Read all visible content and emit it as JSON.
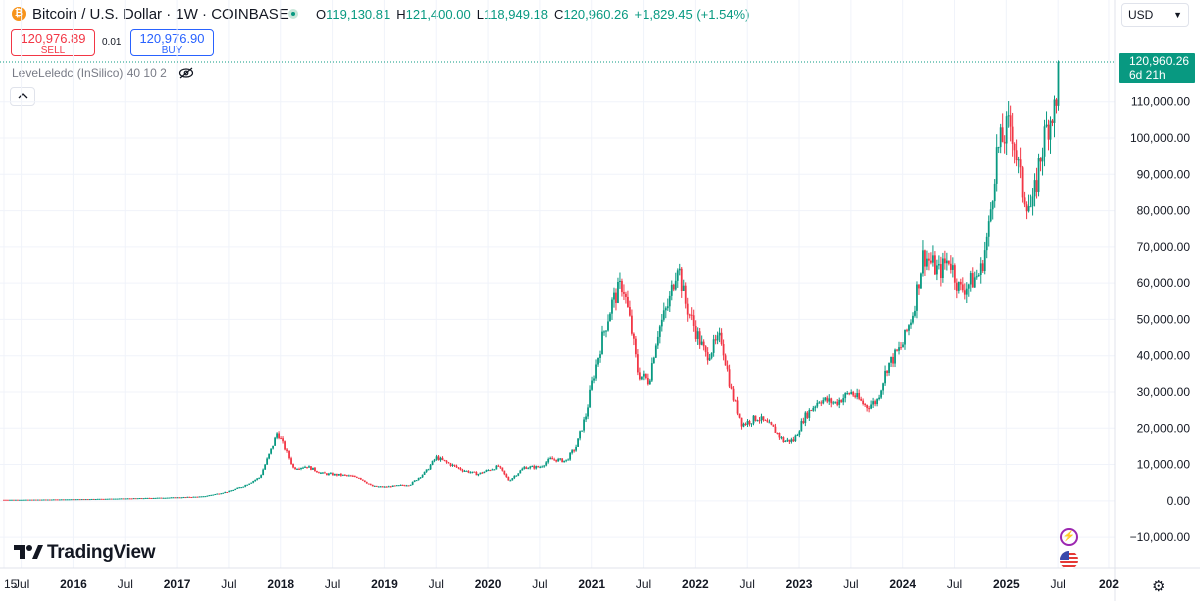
{
  "header": {
    "symbol_title": "Bitcoin / U.S. Dollar · 1W · COINBASE",
    "ohlc": {
      "o_label": "O",
      "o_value": "119,130.81",
      "h_label": "H",
      "h_value": "121,400.00",
      "l_label": "L",
      "l_value": "118,949.18",
      "c_label": "C",
      "c_value": "120,960.26",
      "change": "+1,829.45 (+1.54%)"
    }
  },
  "trade": {
    "sell_price": "120,976.89",
    "sell_label": "SELL",
    "spread": "0.01",
    "buy_price": "120,976.90",
    "buy_label": "BUY"
  },
  "indicator_label": "LeveLeledc (InSilico) 40 10 2",
  "currency": "USD",
  "logo_text": "TradingView",
  "colors": {
    "up": "#089981",
    "down": "#f23645",
    "grid": "#f0f3fa",
    "text": "#131722"
  },
  "chart_data": {
    "type": "candlestick",
    "title": "Bitcoin / U.S. Dollar · 1W · COINBASE",
    "x_ticks": [
      "15",
      "Jul",
      "2016",
      "Jul",
      "2017",
      "Jul",
      "2018",
      "Jul",
      "2019",
      "Jul",
      "2020",
      "Jul",
      "2021",
      "Jul",
      "2022",
      "Jul",
      "2023",
      "Jul",
      "2024",
      "Jul",
      "2025",
      "Jul",
      "202"
    ],
    "y_ticks": [
      110000,
      100000,
      90000,
      80000,
      70000,
      60000,
      50000,
      40000,
      30000,
      20000,
      10000,
      0,
      -10000
    ],
    "y_tick_labels": [
      "110,000.00",
      "100,000.00",
      "90,000.00",
      "80,000.00",
      "70,000.00",
      "60,000.00",
      "50,000.00",
      "40,000.00",
      "30,000.00",
      "20,000.00",
      "10,000.00",
      "0.00",
      "−10,000.00"
    ],
    "ylim": [
      -13000,
      121500
    ],
    "last_price": 120960.26,
    "last_price_label": "120,960.26",
    "countdown_label": "6d 21h",
    "close_path": [
      [
        2015.5,
        300
      ],
      [
        2016.0,
        430
      ],
      [
        2016.5,
        650
      ],
      [
        2017.0,
        950
      ],
      [
        2017.25,
        1200
      ],
      [
        2017.5,
        2600
      ],
      [
        2017.65,
        4200
      ],
      [
        2017.8,
        6500
      ],
      [
        2017.92,
        15000
      ],
      [
        2017.97,
        19000
      ],
      [
        2018.05,
        14000
      ],
      [
        2018.12,
        9000
      ],
      [
        2018.25,
        9500
      ],
      [
        2018.4,
        7500
      ],
      [
        2018.6,
        7000
      ],
      [
        2018.75,
        6500
      ],
      [
        2018.88,
        4000
      ],
      [
        2019.0,
        3800
      ],
      [
        2019.25,
        4500
      ],
      [
        2019.4,
        8000
      ],
      [
        2019.5,
        12000
      ],
      [
        2019.6,
        10500
      ],
      [
        2019.75,
        8500
      ],
      [
        2019.9,
        7300
      ],
      [
        2020.1,
        9500
      ],
      [
        2020.2,
        5500
      ],
      [
        2020.35,
        9200
      ],
      [
        2020.5,
        9300
      ],
      [
        2020.6,
        11500
      ],
      [
        2020.75,
        11000
      ],
      [
        2020.85,
        15000
      ],
      [
        2020.95,
        24000
      ],
      [
        2021.0,
        32000
      ],
      [
        2021.1,
        45000
      ],
      [
        2021.2,
        55000
      ],
      [
        2021.3,
        60000
      ],
      [
        2021.38,
        48000
      ],
      [
        2021.45,
        35000
      ],
      [
        2021.55,
        33000
      ],
      [
        2021.63,
        46000
      ],
      [
        2021.75,
        55000
      ],
      [
        2021.83,
        66000
      ],
      [
        2021.9,
        55000
      ],
      [
        2022.0,
        47000
      ],
      [
        2022.1,
        40000
      ],
      [
        2022.25,
        45000
      ],
      [
        2022.35,
        30000
      ],
      [
        2022.45,
        21000
      ],
      [
        2022.6,
        23000
      ],
      [
        2022.75,
        20000
      ],
      [
        2022.85,
        16500
      ],
      [
        2022.95,
        16700
      ],
      [
        2023.05,
        23000
      ],
      [
        2023.2,
        28000
      ],
      [
        2023.35,
        27000
      ],
      [
        2023.5,
        30000
      ],
      [
        2023.65,
        26000
      ],
      [
        2023.75,
        27500
      ],
      [
        2023.85,
        37000
      ],
      [
        2024.0,
        43000
      ],
      [
        2024.1,
        52000
      ],
      [
        2024.2,
        68000
      ],
      [
        2024.35,
        63000
      ],
      [
        2024.45,
        67000
      ],
      [
        2024.55,
        58000
      ],
      [
        2024.65,
        60000
      ],
      [
        2024.75,
        63000
      ],
      [
        2024.83,
        75000
      ],
      [
        2024.9,
        95000
      ],
      [
        2024.97,
        100000
      ],
      [
        2025.05,
        104000
      ],
      [
        2025.15,
        86000
      ],
      [
        2025.25,
        80000
      ],
      [
        2025.32,
        94000
      ],
      [
        2025.4,
        104000
      ],
      [
        2025.45,
        108000
      ],
      [
        2025.5,
        107000
      ],
      [
        2025.52,
        120960
      ]
    ]
  }
}
